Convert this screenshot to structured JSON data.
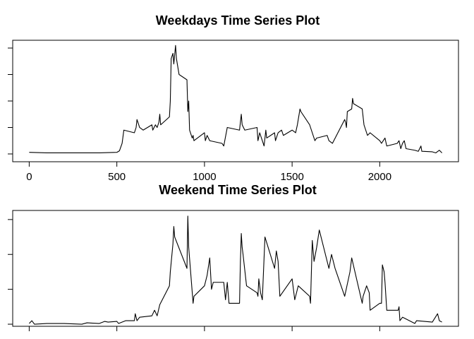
{
  "chart_data": [
    {
      "type": "line",
      "title": "Weekdays Time Series Plot",
      "color": "#000000",
      "x": [
        0,
        100,
        200,
        300,
        400,
        500,
        515,
        530,
        540,
        600,
        610,
        615,
        630,
        650,
        700,
        705,
        720,
        730,
        740,
        745,
        750,
        800,
        805,
        810,
        820,
        825,
        835,
        840,
        845,
        850,
        855,
        900,
        905,
        910,
        915,
        930,
        935,
        940,
        1000,
        1005,
        1015,
        1030,
        1100,
        1110,
        1130,
        1200,
        1205,
        1210,
        1215,
        1230,
        1300,
        1305,
        1315,
        1330,
        1340,
        1350,
        1355,
        1400,
        1405,
        1420,
        1440,
        1450,
        1500,
        1520,
        1530,
        1545,
        1550,
        1600,
        1610,
        1620,
        1630,
        1640,
        1700,
        1710,
        1730,
        1800,
        1805,
        1810,
        1815,
        1840,
        1845,
        1850,
        1900,
        1910,
        1930,
        1945,
        2000,
        2010,
        2030,
        2040,
        2100,
        2110,
        2120,
        2130,
        2140,
        2150,
        2200,
        2220,
        2235,
        2240,
        2300,
        2320,
        2340,
        2355
      ],
      "values": [
        3,
        2,
        2,
        2,
        2,
        3,
        6,
        20,
        45,
        40,
        50,
        65,
        50,
        45,
        55,
        45,
        55,
        50,
        60,
        75,
        55,
        70,
        100,
        180,
        190,
        170,
        205,
        180,
        170,
        160,
        150,
        140,
        80,
        100,
        45,
        30,
        35,
        25,
        40,
        25,
        35,
        25,
        20,
        15,
        50,
        45,
        60,
        75,
        55,
        45,
        50,
        25,
        40,
        25,
        15,
        45,
        30,
        40,
        25,
        40,
        45,
        35,
        45,
        40,
        55,
        85,
        80,
        55,
        45,
        35,
        25,
        30,
        35,
        25,
        20,
        65,
        60,
        50,
        80,
        85,
        105,
        95,
        85,
        55,
        35,
        40,
        25,
        20,
        30,
        15,
        20,
        25,
        10,
        20,
        25,
        10,
        7,
        5,
        15,
        5,
        4,
        2,
        7,
        2
      ],
      "xlim": [
        -94.2,
        2449.2
      ],
      "xticks": [
        0,
        500,
        1000,
        1500,
        2000
      ],
      "xtick_labels": true,
      "ylim": [
        -14.7,
        214.7
      ],
      "yticks": [
        0,
        50,
        100,
        150,
        200
      ],
      "ytick_labels": false
    },
    {
      "type": "line",
      "title": "Weekend Time Series Plot",
      "color": "#000000",
      "x": [
        0,
        15,
        30,
        100,
        200,
        300,
        330,
        400,
        430,
        450,
        500,
        510,
        550,
        600,
        605,
        615,
        630,
        700,
        715,
        730,
        745,
        800,
        805,
        820,
        825,
        830,
        900,
        905,
        910,
        935,
        940,
        1000,
        1015,
        1030,
        1040,
        1050,
        1110,
        1120,
        1130,
        1140,
        1200,
        1205,
        1210,
        1215,
        1220,
        1240,
        1300,
        1305,
        1310,
        1320,
        1330,
        1345,
        1400,
        1410,
        1420,
        1430,
        1500,
        1515,
        1535,
        1600,
        1605,
        1615,
        1625,
        1640,
        1655,
        1700,
        1710,
        1725,
        1745,
        1800,
        1830,
        1840,
        1900,
        1905,
        1925,
        1940,
        1945,
        2000,
        2010,
        2015,
        2025,
        2030,
        2040,
        2100,
        2105,
        2110,
        2115,
        2130,
        2200,
        2210,
        2300,
        2330,
        2340,
        2355
      ],
      "values": [
        1,
        5,
        0,
        1,
        1,
        0,
        2,
        1,
        4,
        3,
        4,
        1,
        5,
        5,
        15,
        5,
        10,
        12,
        20,
        12,
        28,
        55,
        75,
        115,
        140,
        125,
        80,
        155,
        110,
        30,
        40,
        55,
        70,
        95,
        50,
        60,
        60,
        35,
        60,
        30,
        30,
        90,
        130,
        110,
        100,
        55,
        45,
        40,
        65,
        45,
        35,
        125,
        80,
        105,
        90,
        40,
        65,
        35,
        55,
        40,
        30,
        120,
        90,
        110,
        135,
        90,
        80,
        100,
        80,
        40,
        75,
        95,
        30,
        40,
        55,
        45,
        20,
        30,
        30,
        85,
        75,
        60,
        20,
        20,
        20,
        25,
        5,
        10,
        1,
        5,
        3,
        15,
        5,
        3
      ],
      "xlim": [
        -94.2,
        2449.2
      ],
      "xticks": [
        0,
        500,
        1000,
        1500,
        2000
      ],
      "xtick_labels": false,
      "ylim": [
        -3,
        163
      ],
      "yticks": [
        0,
        50,
        100,
        150
      ],
      "ytick_labels": false
    }
  ]
}
